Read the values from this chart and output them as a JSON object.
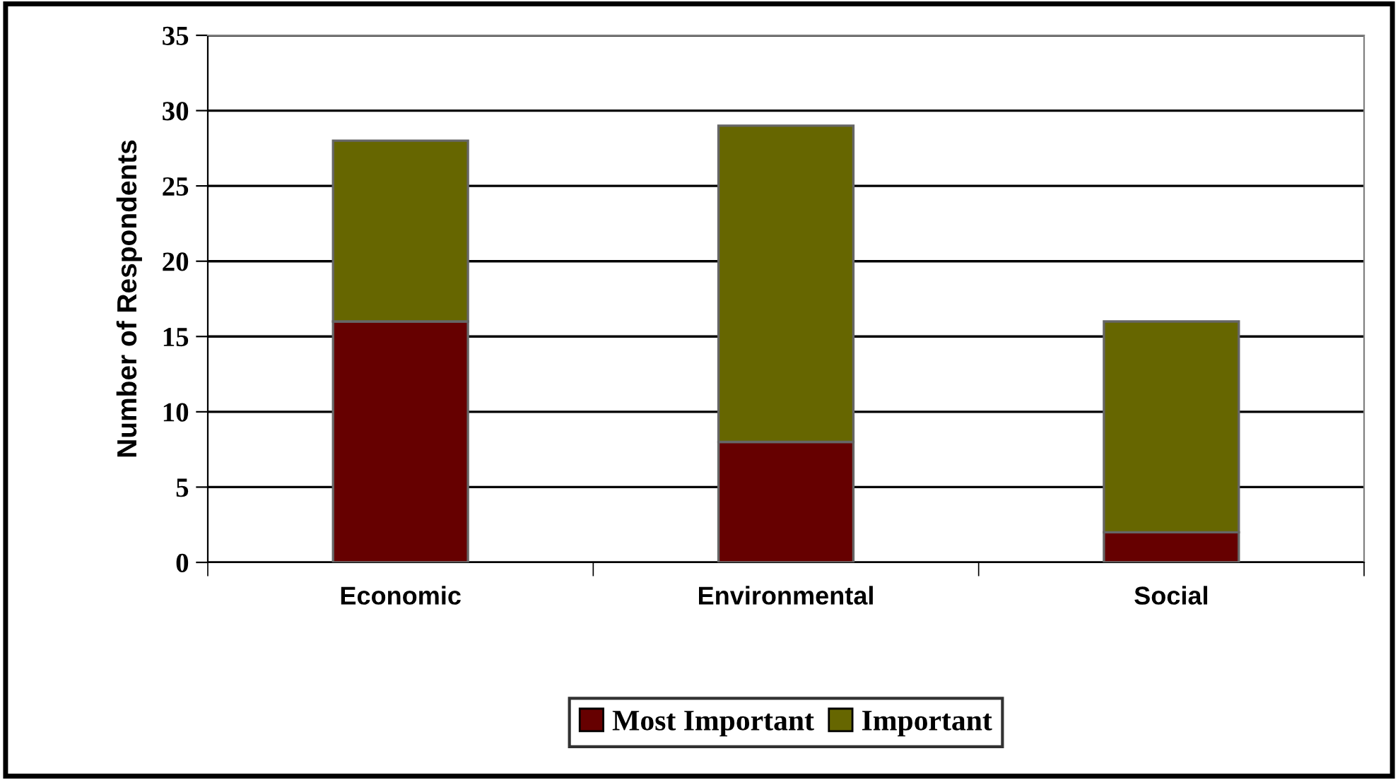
{
  "chart_data": {
    "type": "bar",
    "stacked": true,
    "ylabel": "Number of Respondents",
    "categories": [
      "Economic",
      "Environmental",
      "Social"
    ],
    "series": [
      {
        "name": "Most Important",
        "color": "#660000",
        "values": [
          16,
          8,
          2
        ]
      },
      {
        "name": "Important",
        "color": "#666600",
        "values": [
          12,
          21,
          14
        ]
      }
    ],
    "ylim": [
      0,
      35
    ],
    "yticks": [
      0,
      5,
      10,
      15,
      20,
      25,
      30,
      35
    ],
    "grid": "y",
    "legend": "bottom"
  }
}
